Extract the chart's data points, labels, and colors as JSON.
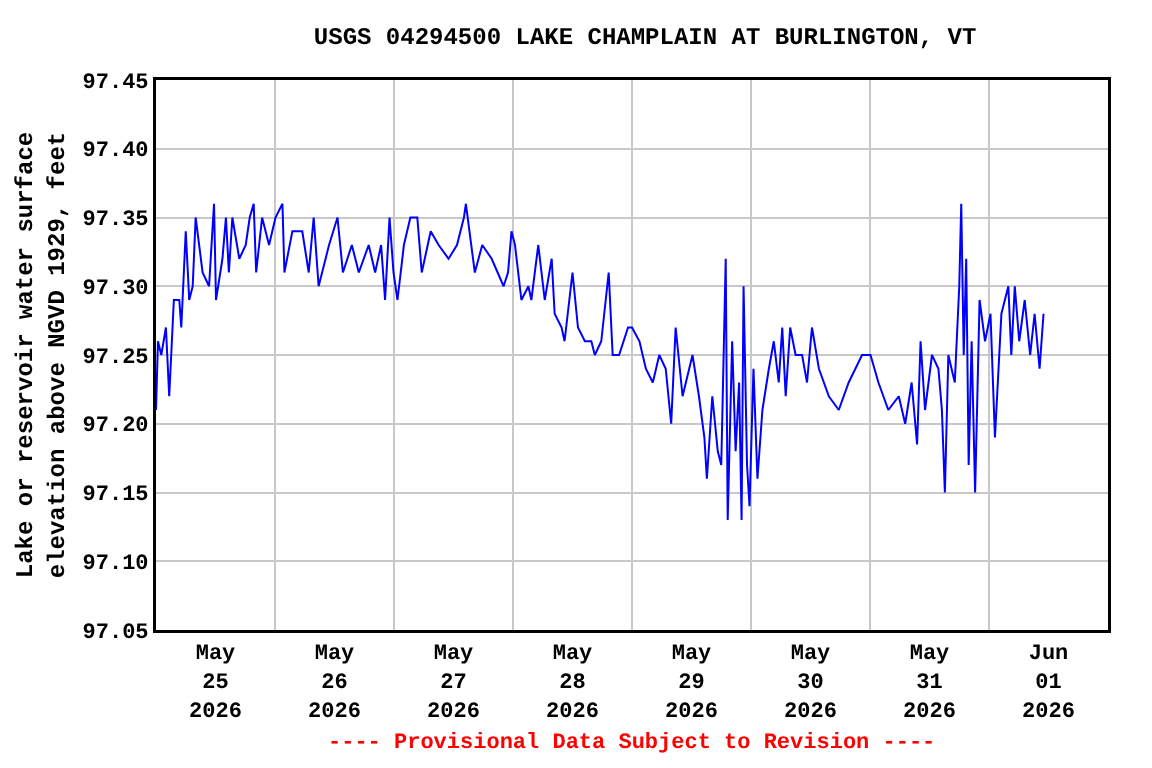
{
  "chart_data": {
    "type": "line",
    "title": "USGS 04294500 LAKE CHAMPLAIN AT BURLINGTON, VT",
    "ylabel": "Lake or reservoir water surface\nelevation above NGVD 1929, feet",
    "annotations": [
      "---- Provisional Data Subject to Revision ----"
    ],
    "x": [
      "2026-05-25T00:00",
      "2026-05-25T00:24",
      "2026-05-25T01:04",
      "2026-05-25T02:00",
      "2026-05-25T02:40",
      "2026-05-25T03:36",
      "2026-05-25T04:42",
      "2026-05-25T05:06",
      "2026-05-25T06:00",
      "2026-05-25T06:42",
      "2026-05-25T07:24",
      "2026-05-25T08:00",
      "2026-05-25T09:24",
      "2026-05-25T10:42",
      "2026-05-25T11:42",
      "2026-05-25T12:06",
      "2026-05-25T13:24",
      "2026-05-25T14:06",
      "2026-05-25T14:42",
      "2026-05-25T15:24",
      "2026-05-25T16:48",
      "2026-05-25T18:06",
      "2026-05-25T18:54",
      "2026-05-25T19:42",
      "2026-05-25T20:12",
      "2026-05-25T21:24",
      "2026-05-25T22:48",
      "2026-05-26T00:06",
      "2026-05-26T01:30",
      "2026-05-26T01:54",
      "2026-05-26T03:30",
      "2026-05-26T05:30",
      "2026-05-26T06:48",
      "2026-05-26T07:48",
      "2026-05-26T08:48",
      "2026-05-26T10:54",
      "2026-05-26T12:36",
      "2026-05-26T13:42",
      "2026-05-26T15:30",
      "2026-05-26T16:54",
      "2026-05-26T18:54",
      "2026-05-26T20:12",
      "2026-05-26T21:24",
      "2026-05-26T22:12",
      "2026-05-26T23:06",
      "2026-05-26T23:54",
      "2026-05-27T00:42",
      "2026-05-27T02:00",
      "2026-05-27T03:18",
      "2026-05-27T04:42",
      "2026-05-27T05:36",
      "2026-05-27T07:24",
      "2026-05-27T09:00",
      "2026-05-27T11:00",
      "2026-05-27T12:42",
      "2026-05-27T14:06",
      "2026-05-27T14:30",
      "2026-05-27T16:18",
      "2026-05-27T17:48",
      "2026-05-27T19:42",
      "2026-05-27T22:06",
      "2026-05-27T23:00",
      "2026-05-27T23:42",
      "2026-05-28T00:24",
      "2026-05-28T01:42",
      "2026-05-28T03:06",
      "2026-05-28T03:42",
      "2026-05-28T05:06",
      "2026-05-28T06:24",
      "2026-05-28T07:48",
      "2026-05-28T08:24",
      "2026-05-28T09:48",
      "2026-05-28T10:24",
      "2026-05-28T12:00",
      "2026-05-28T13:06",
      "2026-05-28T14:30",
      "2026-05-28T15:48",
      "2026-05-28T16:30",
      "2026-05-28T17:48",
      "2026-05-28T19:18",
      "2026-05-28T20:06",
      "2026-05-28T21:24",
      "2026-05-28T23:12",
      "2026-05-29T00:00",
      "2026-05-29T01:30",
      "2026-05-29T02:48",
      "2026-05-29T04:12",
      "2026-05-29T05:30",
      "2026-05-29T06:48",
      "2026-05-29T07:54",
      "2026-05-29T08:48",
      "2026-05-29T10:12",
      "2026-05-29T12:12",
      "2026-05-29T13:30",
      "2026-05-29T14:36",
      "2026-05-29T15:06",
      "2026-05-29T16:12",
      "2026-05-29T17:18",
      "2026-05-29T18:00",
      "2026-05-29T18:54",
      "2026-05-29T19:18",
      "2026-05-29T20:12",
      "2026-05-29T20:54",
      "2026-05-29T21:36",
      "2026-05-29T22:06",
      "2026-05-29T22:30",
      "2026-05-29T23:12",
      "2026-05-29T23:42",
      "2026-05-30T00:30",
      "2026-05-30T01:18",
      "2026-05-30T02:18",
      "2026-05-30T03:36",
      "2026-05-30T04:36",
      "2026-05-30T05:36",
      "2026-05-30T06:18",
      "2026-05-30T07:00",
      "2026-05-30T07:54",
      "2026-05-30T09:00",
      "2026-05-30T10:18",
      "2026-05-30T11:18",
      "2026-05-30T12:18",
      "2026-05-30T13:42",
      "2026-05-30T15:42",
      "2026-05-30T17:42",
      "2026-05-30T19:42",
      "2026-05-30T22:24",
      "2026-05-31T00:06",
      "2026-05-31T01:42",
      "2026-05-31T03:42",
      "2026-05-31T05:48",
      "2026-05-31T07:06",
      "2026-05-31T08:24",
      "2026-05-31T09:30",
      "2026-05-31T10:12",
      "2026-05-31T11:06",
      "2026-05-31T12:30",
      "2026-05-31T13:48",
      "2026-05-31T14:30",
      "2026-05-31T15:06",
      "2026-05-31T15:48",
      "2026-05-31T17:06",
      "2026-05-31T18:00",
      "2026-05-31T18:24",
      "2026-05-31T18:54",
      "2026-05-31T19:24",
      "2026-05-31T19:54",
      "2026-05-31T20:30",
      "2026-05-31T21:12",
      "2026-05-31T22:06",
      "2026-05-31T23:12",
      "2026-06-01T00:18",
      "2026-06-01T01:12",
      "2026-06-01T02:30",
      "2026-06-01T03:54",
      "2026-06-01T04:30",
      "2026-06-01T05:12",
      "2026-06-01T06:06",
      "2026-06-01T07:12",
      "2026-06-01T08:18",
      "2026-06-01T09:12",
      "2026-06-01T10:12",
      "2026-06-01T11:00"
    ],
    "series": [
      {
        "color": "#0000ff",
        "values": [
          97.21,
          97.26,
          97.25,
          97.27,
          97.22,
          97.29,
          97.29,
          97.27,
          97.34,
          97.29,
          97.3,
          97.35,
          97.31,
          97.3,
          97.36,
          97.29,
          97.32,
          97.35,
          97.31,
          97.35,
          97.32,
          97.33,
          97.35,
          97.36,
          97.31,
          97.35,
          97.33,
          97.35,
          97.36,
          97.31,
          97.34,
          97.34,
          97.31,
          97.35,
          97.3,
          97.33,
          97.35,
          97.31,
          97.33,
          97.31,
          97.33,
          97.31,
          97.33,
          97.29,
          97.35,
          97.31,
          97.29,
          97.33,
          97.35,
          97.35,
          97.31,
          97.34,
          97.33,
          97.32,
          97.33,
          97.35,
          97.36,
          97.31,
          97.33,
          97.32,
          97.3,
          97.31,
          97.34,
          97.33,
          97.29,
          97.3,
          97.29,
          97.33,
          97.29,
          97.32,
          97.28,
          97.27,
          97.26,
          97.31,
          97.27,
          97.26,
          97.26,
          97.25,
          97.26,
          97.31,
          97.25,
          97.25,
          97.27,
          97.27,
          97.26,
          97.24,
          97.23,
          97.25,
          97.24,
          97.2,
          97.27,
          97.22,
          97.25,
          97.22,
          97.19,
          97.16,
          97.22,
          97.18,
          97.17,
          97.32,
          97.13,
          97.26,
          97.18,
          97.23,
          97.13,
          97.3,
          97.17,
          97.14,
          97.24,
          97.16,
          97.21,
          97.24,
          97.26,
          97.23,
          97.27,
          97.22,
          97.27,
          97.25,
          97.25,
          97.23,
          97.27,
          97.24,
          97.22,
          97.21,
          97.23,
          97.25,
          97.25,
          97.23,
          97.21,
          97.22,
          97.2,
          97.23,
          97.185,
          97.26,
          97.21,
          97.25,
          97.24,
          97.21,
          97.15,
          97.25,
          97.23,
          97.3,
          97.36,
          97.25,
          97.32,
          97.17,
          97.26,
          97.15,
          97.29,
          97.26,
          97.28,
          97.19,
          97.28,
          97.3,
          97.25,
          97.3,
          97.26,
          97.29,
          97.25,
          97.28,
          97.24,
          97.28
        ]
      }
    ],
    "xlim": [
      "2026-05-25",
      "2026-06-02"
    ],
    "xticks": [
      {
        "value": "2026-05-25T12:00",
        "label": "May\n25\n2026"
      },
      {
        "value": "2026-05-26T12:00",
        "label": "May\n26\n2026"
      },
      {
        "value": "2026-05-27T12:00",
        "label": "May\n27\n2026"
      },
      {
        "value": "2026-05-28T12:00",
        "label": "May\n28\n2026"
      },
      {
        "value": "2026-05-29T12:00",
        "label": "May\n29\n2026"
      },
      {
        "value": "2026-05-30T12:00",
        "label": "May\n30\n2026"
      },
      {
        "value": "2026-05-31T12:00",
        "label": "May\n31\n2026"
      },
      {
        "value": "2026-06-01T12:00",
        "label": "Jun\n01\n2026"
      },
      {
        "value": "2026-05-26",
        "label": null
      },
      {
        "value": "2026-05-27",
        "label": null
      },
      {
        "value": "2026-05-28",
        "label": null
      },
      {
        "value": "2026-05-29",
        "label": null
      },
      {
        "value": "2026-05-30",
        "label": null
      },
      {
        "value": "2026-05-31",
        "label": null
      },
      {
        "value": "2026-06-01",
        "label": null
      }
    ],
    "ylim": [
      97.05,
      97.45
    ],
    "yticks": [
      {
        "value": 97.05,
        "label": "97.05"
      },
      {
        "value": 97.1,
        "label": "97.10"
      },
      {
        "value": 97.15,
        "label": "97.15"
      },
      {
        "value": 97.2,
        "label": "97.20"
      },
      {
        "value": 97.25,
        "label": "97.25"
      },
      {
        "value": 97.3,
        "label": "97.30"
      },
      {
        "value": 97.35,
        "label": "97.35"
      },
      {
        "value": 97.4,
        "label": "97.40"
      },
      {
        "value": 97.45,
        "label": "97.45"
      }
    ],
    "grid": true,
    "marker": "none",
    "line_style": "solid"
  }
}
